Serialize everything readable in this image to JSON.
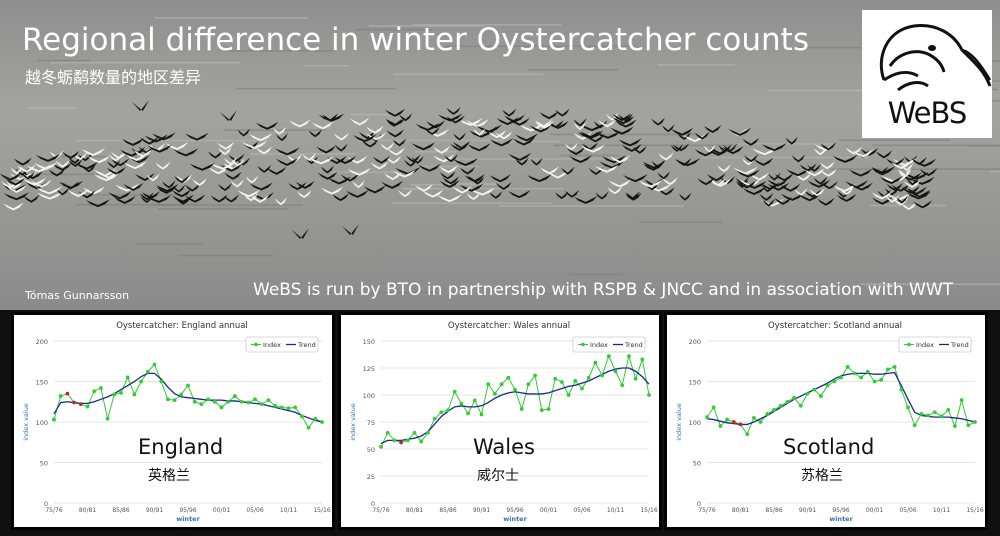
{
  "header": {
    "title": "Regional difference in winter Oystercatcher counts",
    "subtitle": "越冬蛎鹬数量的地区差异",
    "photo_credit": "Tómas Gunnarsson",
    "partnership": "WeBS is run by BTO in partnership with RSPB & JNCC and in association with WWT",
    "logo_text": "WeBS"
  },
  "colors": {
    "index": "#33cc33",
    "trend": "#1a2a8c",
    "highlight": "#c0282a",
    "axis_title": "#3a6fb0"
  },
  "chart_data": [
    {
      "type": "line",
      "title": "Oystercatcher: England annual",
      "region": "England",
      "region_cn": "英格兰",
      "xlabel": "winter",
      "ylabel": "index value",
      "ylim": [
        0,
        200
      ],
      "yticks": [
        0,
        50,
        100,
        150,
        200
      ],
      "xticks": [
        "75/76",
        "80/81",
        "85/86",
        "90/91",
        "95/96",
        "00/01",
        "05/06",
        "10/11",
        "15/16"
      ],
      "x": [
        1975,
        1976,
        1977,
        1978,
        1979,
        1980,
        1981,
        1982,
        1983,
        1984,
        1985,
        1986,
        1987,
        1988,
        1989,
        1990,
        1991,
        1992,
        1993,
        1994,
        1995,
        1996,
        1997,
        1998,
        1999,
        2000,
        2001,
        2002,
        2003,
        2004,
        2005,
        2006,
        2007,
        2008,
        2009,
        2010,
        2011,
        2012,
        2013,
        2014,
        2015
      ],
      "legend": [
        "Index",
        "Trend"
      ],
      "legend_position": "top-right",
      "highlight_x": [
        1977,
        1978,
        1979
      ],
      "series": [
        {
          "name": "Index",
          "values": [
            103,
            132,
            135,
            124,
            122,
            119,
            138,
            142,
            104,
            134,
            136,
            155,
            134,
            150,
            162,
            171,
            150,
            128,
            127,
            134,
            145,
            125,
            122,
            128,
            125,
            118,
            125,
            132,
            125,
            124,
            128,
            122,
            127,
            120,
            118,
            117,
            118,
            107,
            93,
            104,
            100
          ]
        },
        {
          "name": "Trend",
          "values": [
            110,
            124,
            125,
            124,
            123,
            123,
            125,
            128,
            131,
            135,
            140,
            145,
            150,
            156,
            160,
            160,
            153,
            143,
            135,
            131,
            130,
            129,
            128,
            127,
            127,
            127,
            126,
            126,
            125,
            124,
            123,
            122,
            120,
            118,
            116,
            114,
            112,
            108,
            105,
            102,
            100
          ]
        }
      ]
    },
    {
      "type": "line",
      "title": "Oystercatcher: Wales annual",
      "region": "Wales",
      "region_cn": "威尔士",
      "xlabel": "winter",
      "ylabel": "index value",
      "ylim": [
        0,
        150
      ],
      "yticks": [
        0,
        25,
        50,
        75,
        100,
        125,
        150
      ],
      "xticks": [
        "75/76",
        "80/81",
        "85/86",
        "90/91",
        "95/96",
        "00/01",
        "05/06",
        "10/11",
        "15/16"
      ],
      "x": [
        1975,
        1976,
        1977,
        1978,
        1979,
        1980,
        1981,
        1982,
        1983,
        1984,
        1985,
        1986,
        1987,
        1988,
        1989,
        1990,
        1991,
        1992,
        1993,
        1994,
        1995,
        1996,
        1997,
        1998,
        1999,
        2000,
        2001,
        2002,
        2003,
        2004,
        2005,
        2006,
        2007,
        2008,
        2009,
        2010,
        2011,
        2012,
        2013,
        2014,
        2015
      ],
      "legend": [
        "Index",
        "Trend"
      ],
      "legend_position": "top-right",
      "highlight_x": [
        1978
      ],
      "series": [
        {
          "name": "Index",
          "values": [
            52,
            65,
            58,
            56,
            58,
            65,
            57,
            65,
            78,
            84,
            86,
            103,
            92,
            83,
            95,
            82,
            110,
            101,
            110,
            116,
            105,
            87,
            110,
            118,
            86,
            87,
            115,
            112,
            100,
            113,
            106,
            116,
            130,
            118,
            136,
            122,
            109,
            136,
            115,
            133,
            100
          ]
        },
        {
          "name": "Trend",
          "values": [
            55,
            58,
            58,
            58,
            59,
            60,
            62,
            66,
            73,
            80,
            85,
            89,
            90,
            89,
            89,
            90,
            93,
            97,
            100,
            102,
            103,
            102,
            101,
            101,
            101,
            102,
            104,
            106,
            108,
            109,
            111,
            113,
            116,
            119,
            122,
            124,
            125,
            125,
            122,
            117,
            110
          ]
        }
      ]
    },
    {
      "type": "line",
      "title": "Oystercatcher: Scotland annual",
      "region": "Scotland",
      "region_cn": "苏格兰",
      "xlabel": "winter",
      "ylabel": "index value",
      "ylim": [
        0,
        200
      ],
      "yticks": [
        0,
        50,
        100,
        150,
        200
      ],
      "xticks": [
        "75/76",
        "80/81",
        "85/86",
        "90/91",
        "95/96",
        "00/01",
        "05/06",
        "10/11",
        "15/16"
      ],
      "x": [
        1975,
        1976,
        1977,
        1978,
        1979,
        1980,
        1981,
        1982,
        1983,
        1984,
        1985,
        1986,
        1987,
        1988,
        1989,
        1990,
        1991,
        1992,
        1993,
        1994,
        1995,
        1996,
        1997,
        1998,
        1999,
        2000,
        2001,
        2002,
        2003,
        2004,
        2005,
        2006,
        2007,
        2008,
        2009,
        2010,
        2011,
        2012,
        2013,
        2014,
        2015
      ],
      "legend": [
        "Index",
        "Trend"
      ],
      "legend_position": "top-right",
      "highlight_x": [
        1979,
        1980
      ],
      "series": [
        {
          "name": "Index",
          "values": [
            106,
            118,
            95,
            103,
            100,
            97,
            85,
            105,
            100,
            110,
            115,
            120,
            125,
            130,
            120,
            135,
            140,
            132,
            145,
            150,
            155,
            168,
            160,
            155,
            162,
            150,
            152,
            165,
            168,
            140,
            118,
            96,
            110,
            108,
            112,
            107,
            115,
            95,
            127,
            96,
            100
          ]
        },
        {
          "name": "Trend",
          "values": [
            104,
            103,
            101,
            99,
            98,
            97,
            97,
            100,
            104,
            108,
            113,
            118,
            123,
            128,
            132,
            136,
            140,
            144,
            148,
            153,
            157,
            159,
            160,
            160,
            160,
            159,
            159,
            160,
            161,
            145,
            128,
            112,
            108,
            107,
            106,
            106,
            106,
            105,
            104,
            102,
            100
          ]
        }
      ]
    }
  ]
}
